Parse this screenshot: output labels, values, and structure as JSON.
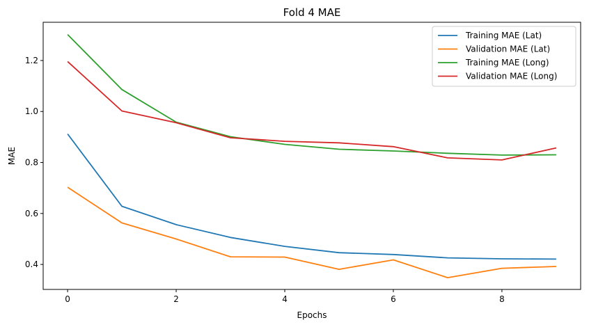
{
  "chart_data": {
    "type": "line",
    "title": "Fold 4 MAE",
    "xlabel": "Epochs",
    "ylabel": "MAE",
    "x": [
      0,
      1,
      2,
      3,
      4,
      5,
      6,
      7,
      8,
      9
    ],
    "xlim": [
      -0.45,
      9.45
    ],
    "ylim": [
      0.302,
      1.35
    ],
    "xticks": [
      0,
      2,
      4,
      6,
      8
    ],
    "yticks": [
      0.4,
      0.6,
      0.8,
      1.0,
      1.2
    ],
    "ytick_labels": [
      "0.4",
      "0.6",
      "0.8",
      "1.0",
      "1.2"
    ],
    "grid": false,
    "legend_position": "top-right",
    "series": [
      {
        "name": "Training MAE (Lat)",
        "color": "#1f77b4",
        "values": [
          0.912,
          0.628,
          0.556,
          0.506,
          0.471,
          0.446,
          0.439,
          0.426,
          0.422,
          0.421
        ]
      },
      {
        "name": "Validation MAE (Lat)",
        "color": "#ff7f0e",
        "values": [
          0.703,
          0.563,
          0.5,
          0.43,
          0.429,
          0.381,
          0.418,
          0.348,
          0.385,
          0.392
        ]
      },
      {
        "name": "Training MAE (Long)",
        "color": "#2ca02c",
        "values": [
          1.302,
          1.086,
          0.958,
          0.901,
          0.871,
          0.852,
          0.845,
          0.836,
          0.829,
          0.83
        ]
      },
      {
        "name": "Validation MAE (Long)",
        "color": "#d62728",
        "values": [
          1.196,
          1.002,
          0.956,
          0.897,
          0.883,
          0.877,
          0.862,
          0.818,
          0.81,
          0.857
        ]
      }
    ]
  }
}
